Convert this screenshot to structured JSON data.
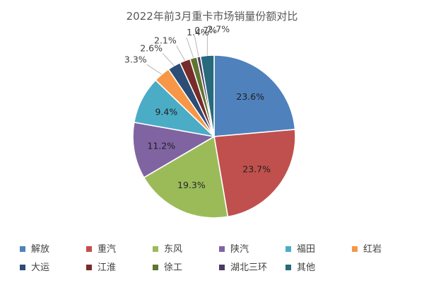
{
  "chart_data": {
    "type": "pie",
    "title": "2022年前3月重卡市场销量份额对比",
    "categories": [
      "解放",
      "重汽",
      "东风",
      "陕汽",
      "福田",
      "红岩",
      "大运",
      "江淮",
      "徐工",
      "湖北三环",
      "其他"
    ],
    "values": [
      23.6,
      23.7,
      19.3,
      11.2,
      9.4,
      3.3,
      2.6,
      2.1,
      1.4,
      0.7,
      2.7
    ],
    "labels": [
      "23.6%",
      "23.7%",
      "19.3%",
      "11.2%",
      "9.4%",
      "3.3%",
      "2.6%",
      "2.1%",
      "1.4%",
      "0.7%",
      "2.7%"
    ],
    "colors": [
      "#4f81bd",
      "#c0504d",
      "#9bbb59",
      "#8064a2",
      "#4bacc6",
      "#f79646",
      "#2c4d75",
      "#772c2a",
      "#5f7530",
      "#4d3b62",
      "#276a7c"
    ],
    "legend_position": "bottom",
    "unit": "%"
  }
}
